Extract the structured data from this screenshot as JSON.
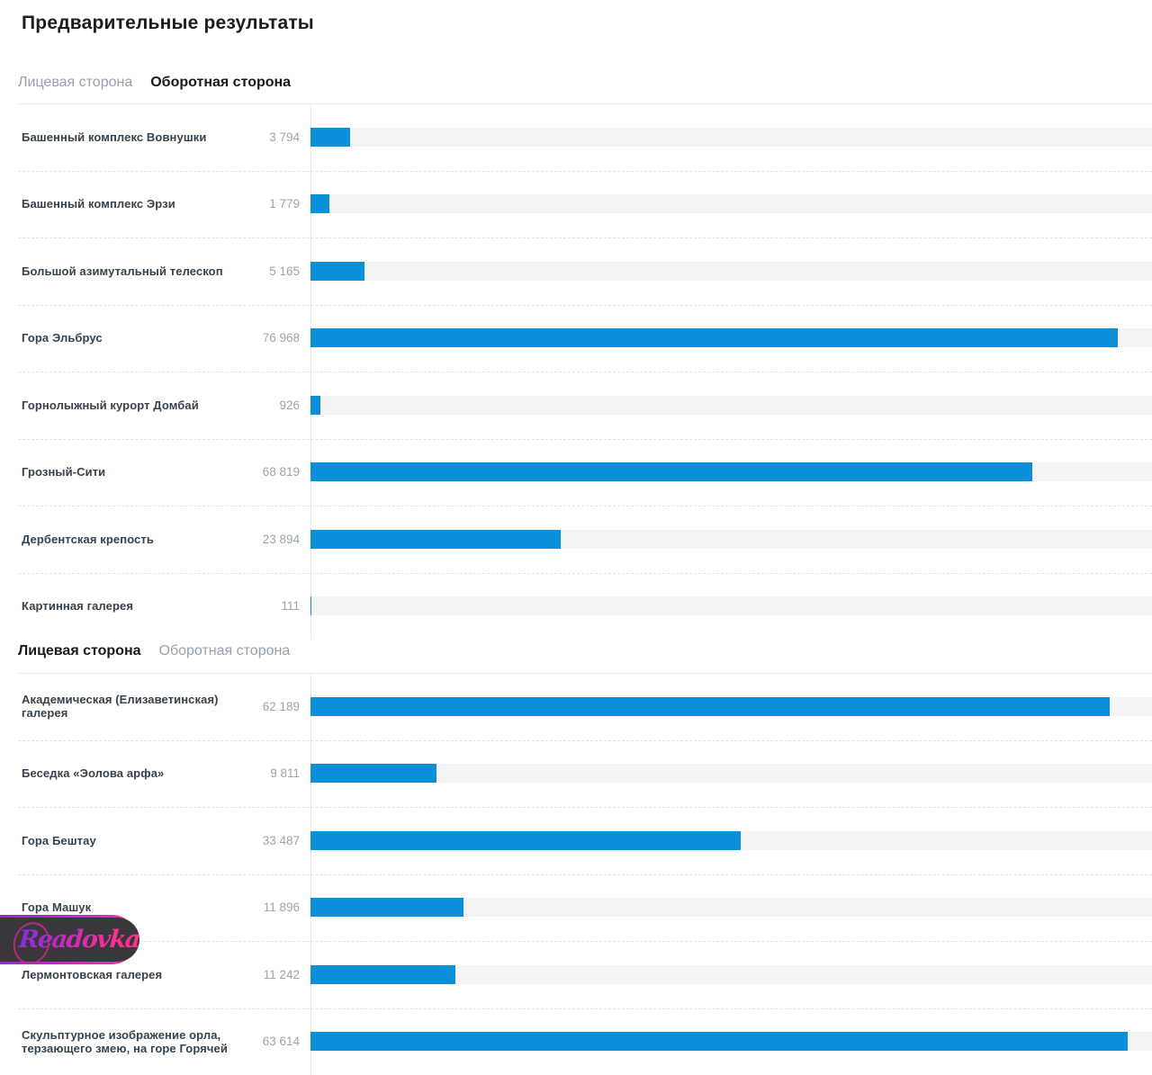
{
  "page": {
    "title": "Предварительные результаты"
  },
  "watermark": {
    "text": "Readovka"
  },
  "colors": {
    "bar_fill": "#0b8fd8",
    "bar_track": "#f4f4f4",
    "tab_active": "#19191b",
    "tab_inactive": "#95a2ae",
    "option_label": "#36424c",
    "vote_count": "#99a5ad"
  },
  "chart_data": [
    {
      "type": "bar",
      "orientation": "horizontal",
      "title": "Оборотная сторона",
      "tabs": [
        {
          "label": "Лицевая сторона",
          "active": false
        },
        {
          "label": "Оборотная сторона",
          "active": true
        }
      ],
      "categories": [
        "Башенный комплекс Вовнушки",
        "Башенный комплекс Эрзи",
        "Большой азимутальный телескоп",
        "Гора Эльбрус",
        "Горнолыжный курорт Домбай",
        "Грозный-Сити",
        "Дербентская крепость",
        "Картинная галерея"
      ],
      "values": [
        3794,
        1779,
        5165,
        76968,
        926,
        68819,
        23894,
        111
      ],
      "value_labels": [
        "3 794",
        "1 779",
        "5 165",
        "76 968",
        "926",
        "68 819",
        "23 894",
        "111"
      ],
      "xlim": [
        0,
        80230
      ],
      "grid": false,
      "legend": false
    },
    {
      "type": "bar",
      "orientation": "horizontal",
      "title": "Лицевая сторона",
      "tabs": [
        {
          "label": "Лицевая сторона",
          "active": true
        },
        {
          "label": "Оборотная сторона",
          "active": false
        }
      ],
      "categories": [
        "Академическая (Елизаветинская) галерея",
        "Беседка «Эолова арфа»",
        "Гора Бештау",
        "Гора Машук",
        "Лермонтовская галерея",
        "Скульптурное изображение орла, терзающего змею, на горе Горячей"
      ],
      "values": [
        62189,
        9811,
        33487,
        11896,
        11242,
        63614
      ],
      "value_labels": [
        "62 189",
        "9 811",
        "33 487",
        "11 896",
        "11 242",
        "63 614"
      ],
      "xlim": [
        0,
        65480
      ],
      "grid": false,
      "legend": false
    }
  ]
}
